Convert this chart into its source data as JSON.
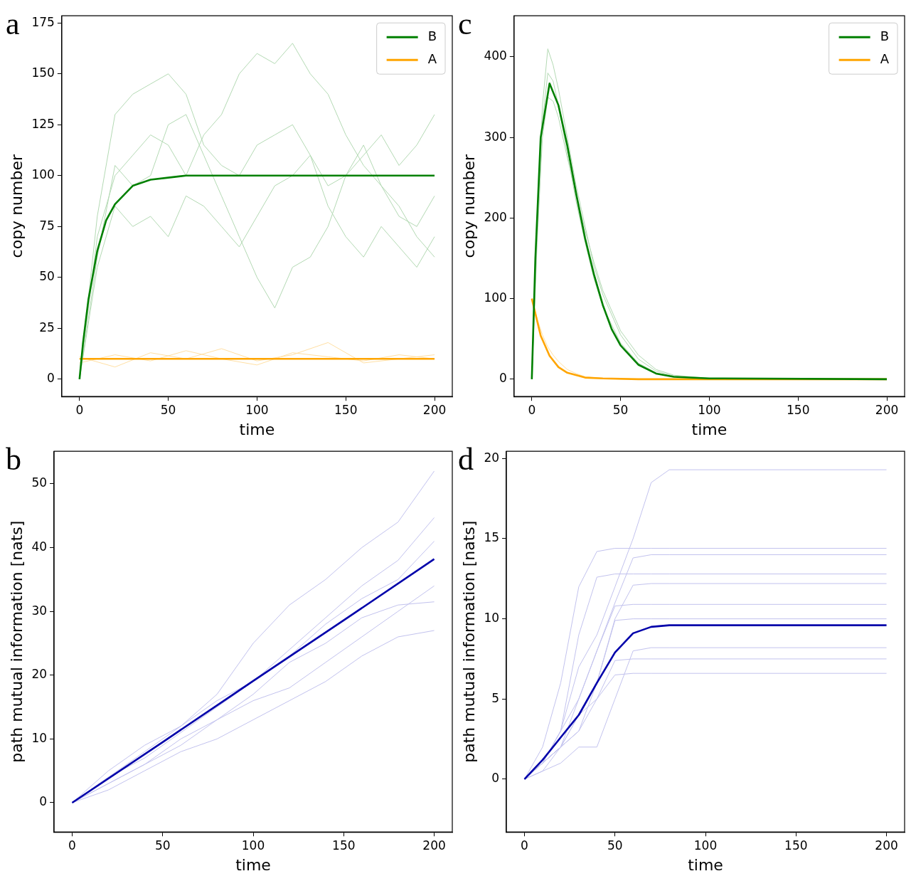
{
  "chart_data": [
    {
      "type": "line",
      "title": "a",
      "xlabel": "time",
      "ylabel": "copy number",
      "xlim": [
        -10,
        210
      ],
      "ylim": [
        -8.5,
        178.5
      ],
      "xticks": [
        0,
        50,
        100,
        150,
        200
      ],
      "yticks": [
        0,
        25,
        50,
        75,
        100,
        125,
        150,
        175
      ],
      "legend": "top right",
      "grid": false,
      "series": [
        {
          "name": "B",
          "color": "#008000",
          "x": [
            0,
            2,
            5,
            10,
            15,
            20,
            30,
            40,
            50,
            60,
            200
          ],
          "values": [
            0,
            18,
            39,
            63,
            78,
            86,
            95,
            98,
            99,
            100,
            100
          ]
        },
        {
          "name": "A",
          "color": "#ffa500",
          "x": [
            0,
            200
          ],
          "values": [
            10,
            10
          ]
        },
        {
          "color": "#b3d9b3",
          "x": [
            0,
            10,
            20,
            30,
            40,
            50,
            60,
            70,
            80,
            90,
            100,
            110,
            120,
            130,
            140,
            150,
            160,
            170,
            180,
            190,
            200
          ],
          "values": [
            0,
            60,
            105,
            95,
            100,
            125,
            130,
            110,
            90,
            70,
            50,
            35,
            55,
            60,
            75,
            100,
            115,
            95,
            80,
            75,
            90
          ]
        },
        {
          "color": "#b3d9b3",
          "x": [
            0,
            10,
            20,
            30,
            40,
            50,
            60,
            70,
            80,
            90,
            100,
            110,
            120,
            130,
            140,
            150,
            160,
            170,
            180,
            190,
            200
          ],
          "values": [
            0,
            70,
            100,
            110,
            120,
            115,
            100,
            120,
            130,
            150,
            160,
            155,
            165,
            150,
            140,
            120,
            105,
            95,
            85,
            70,
            60
          ]
        },
        {
          "color": "#b3d9b3",
          "x": [
            0,
            10,
            20,
            30,
            40,
            50,
            60,
            70,
            80,
            90,
            100,
            110,
            120,
            130,
            140,
            150,
            160,
            170,
            180,
            190,
            200
          ],
          "values": [
            0,
            80,
            130,
            140,
            145,
            150,
            140,
            115,
            105,
            100,
            115,
            120,
            125,
            110,
            95,
            100,
            110,
            120,
            105,
            115,
            130
          ]
        },
        {
          "color": "#b3d9b3",
          "x": [
            0,
            10,
            20,
            30,
            40,
            50,
            60,
            70,
            80,
            90,
            100,
            110,
            120,
            130,
            140,
            150,
            160,
            170,
            180,
            190,
            200
          ],
          "values": [
            0,
            55,
            85,
            75,
            80,
            70,
            90,
            85,
            75,
            65,
            80,
            95,
            100,
            110,
            85,
            70,
            60,
            75,
            65,
            55,
            70
          ]
        },
        {
          "color": "#ffdfa3",
          "x": [
            0,
            20,
            40,
            60,
            80,
            100,
            120,
            140,
            160,
            180,
            200
          ],
          "values": [
            8,
            12,
            9,
            14,
            10,
            7,
            13,
            11,
            9,
            12,
            10
          ]
        },
        {
          "color": "#ffdfa3",
          "x": [
            0,
            20,
            40,
            60,
            80,
            100,
            120,
            140,
            160,
            180,
            200
          ],
          "values": [
            11,
            6,
            13,
            10,
            15,
            9,
            12,
            18,
            8,
            10,
            12
          ]
        }
      ]
    },
    {
      "type": "line",
      "title": "c",
      "xlabel": "time",
      "ylabel": "copy number",
      "xlim": [
        -10,
        210
      ],
      "ylim": [
        -21.5,
        451
      ],
      "xticks": [
        0,
        50,
        100,
        150,
        200
      ],
      "yticks": [
        0,
        100,
        200,
        300,
        400
      ],
      "legend": "top right",
      "grid": false,
      "series": [
        {
          "name": "B",
          "color": "#008000",
          "x": [
            0,
            2,
            5,
            10,
            15,
            20,
            25,
            30,
            35,
            40,
            45,
            50,
            60,
            70,
            80,
            100,
            200
          ],
          "values": [
            0,
            150,
            300,
            367,
            340,
            290,
            230,
            175,
            130,
            92,
            62,
            42,
            18,
            7,
            3,
            1,
            0
          ]
        },
        {
          "name": "A",
          "color": "#ffa500",
          "x": [
            0,
            5,
            10,
            15,
            20,
            30,
            40,
            60,
            200
          ],
          "values": [
            100,
            54,
            29,
            15,
            8,
            2,
            1,
            0,
            0
          ]
        },
        {
          "color": "#b3d9b3",
          "x": [
            0,
            3,
            6,
            9,
            12,
            15,
            20,
            25,
            30,
            35,
            40,
            50,
            60,
            70,
            80,
            100,
            200
          ],
          "values": [
            0,
            200,
            340,
            410,
            390,
            360,
            300,
            240,
            190,
            140,
            105,
            55,
            25,
            10,
            4,
            0,
            0
          ]
        },
        {
          "color": "#b3d9b3",
          "x": [
            0,
            3,
            6,
            9,
            12,
            15,
            20,
            25,
            30,
            35,
            40,
            50,
            60,
            70,
            80,
            100,
            200
          ],
          "values": [
            0,
            180,
            320,
            380,
            370,
            340,
            280,
            220,
            170,
            125,
            90,
            45,
            20,
            8,
            3,
            0,
            0
          ]
        },
        {
          "color": "#b3d9b3",
          "x": [
            0,
            3,
            6,
            9,
            12,
            15,
            20,
            25,
            30,
            35,
            40,
            50,
            60,
            70,
            80,
            100,
            200
          ],
          "values": [
            0,
            170,
            300,
            350,
            345,
            325,
            275,
            230,
            185,
            145,
            110,
            60,
            30,
            12,
            5,
            1,
            0
          ]
        },
        {
          "color": "#ffdfa3",
          "x": [
            0,
            3,
            6,
            9,
            12,
            15,
            20,
            25,
            30,
            35,
            40,
            50,
            60,
            200
          ],
          "values": [
            100,
            75,
            55,
            40,
            30,
            22,
            12,
            7,
            3,
            2,
            1,
            0,
            0,
            0
          ]
        }
      ]
    },
    {
      "type": "line",
      "title": "b",
      "xlabel": "time",
      "ylabel": "path mutual information [nats]",
      "xlim": [
        -10,
        210
      ],
      "ylim": [
        -4.6,
        55.1
      ],
      "xticks": [
        0,
        50,
        100,
        150,
        200
      ],
      "yticks": [
        0,
        10,
        20,
        30,
        40,
        50
      ],
      "grid": false,
      "series": [
        {
          "color": "#0000aa",
          "x": [
            0,
            50,
            100,
            150,
            200
          ],
          "values": [
            0,
            9.5,
            19.1,
            28.6,
            38.2
          ]
        },
        {
          "color": "#c2c2ee",
          "x": [
            0,
            20,
            40,
            60,
            80,
            100,
            120,
            140,
            160,
            180,
            200
          ],
          "values": [
            0,
            5,
            9,
            12,
            17,
            25,
            31,
            35,
            40,
            44,
            52
          ]
        },
        {
          "color": "#c2c2ee",
          "x": [
            0,
            20,
            40,
            60,
            80,
            100,
            120,
            140,
            160,
            180,
            200
          ],
          "values": [
            0,
            3,
            6,
            10,
            13,
            17,
            22,
            25,
            29,
            31,
            31.5
          ]
        },
        {
          "color": "#c2c2ee",
          "x": [
            0,
            20,
            40,
            60,
            80,
            100,
            120,
            140,
            160,
            180,
            200
          ],
          "values": [
            0,
            4,
            8,
            12,
            16,
            19,
            24,
            29,
            34,
            38,
            44.7
          ]
        },
        {
          "color": "#c2c2ee",
          "x": [
            0,
            20,
            40,
            60,
            80,
            100,
            120,
            140,
            160,
            180,
            200
          ],
          "values": [
            0,
            2,
            5,
            8,
            10,
            13,
            16,
            19,
            23,
            26,
            27
          ]
        },
        {
          "color": "#c2c2ee",
          "x": [
            0,
            20,
            40,
            60,
            80,
            100,
            120,
            140,
            160,
            180,
            200
          ],
          "values": [
            0,
            4,
            7,
            11,
            15,
            19,
            23,
            28,
            32,
            35,
            41
          ]
        },
        {
          "color": "#c2c2ee",
          "x": [
            0,
            20,
            40,
            60,
            80,
            100,
            120,
            140,
            160,
            180,
            200
          ],
          "values": [
            0,
            3,
            6,
            9,
            13,
            16,
            18,
            22,
            26,
            30,
            34
          ]
        }
      ]
    },
    {
      "type": "line",
      "title": "d",
      "xlabel": "time",
      "ylabel": "path mutual information [nats]",
      "xlim": [
        -10,
        210
      ],
      "ylim": [
        -3.3,
        20.45
      ],
      "xticks": [
        0,
        50,
        100,
        150,
        200
      ],
      "yticks": [
        0,
        5,
        10,
        15,
        20
      ],
      "grid": false,
      "series": [
        {
          "color": "#0000aa",
          "x": [
            0,
            10,
            20,
            30,
            40,
            50,
            60,
            70,
            80,
            100,
            200
          ],
          "values": [
            0,
            1.2,
            2.6,
            4.0,
            6.0,
            7.9,
            9.1,
            9.5,
            9.6,
            9.6,
            9.6
          ]
        },
        {
          "color": "#c2c2ee",
          "x": [
            0,
            10,
            20,
            30,
            40,
            50,
            60,
            70,
            80,
            200
          ],
          "values": [
            0,
            1,
            3,
            7,
            9,
            12,
            15,
            18.5,
            19.3,
            19.3
          ]
        },
        {
          "color": "#c2c2ee",
          "x": [
            0,
            10,
            20,
            30,
            40,
            50,
            60,
            70,
            80,
            200
          ],
          "values": [
            0,
            2,
            6,
            12,
            14.2,
            14.4,
            14.4,
            14.4,
            14.4,
            14.4
          ]
        },
        {
          "color": "#c2c2ee",
          "x": [
            0,
            10,
            20,
            30,
            40,
            50,
            60,
            70,
            80,
            200
          ],
          "values": [
            0,
            1,
            2,
            5,
            8,
            11,
            13.8,
            14,
            14,
            14
          ]
        },
        {
          "color": "#c2c2ee",
          "x": [
            0,
            10,
            20,
            30,
            40,
            50,
            60,
            70,
            80,
            200
          ],
          "values": [
            0,
            1,
            3,
            9,
            12.6,
            12.8,
            12.8,
            12.8,
            12.8,
            12.8
          ]
        },
        {
          "color": "#c2c2ee",
          "x": [
            0,
            10,
            20,
            30,
            40,
            50,
            60,
            70,
            80,
            200
          ],
          "values": [
            0,
            1,
            2,
            4,
            6,
            10,
            12.1,
            12.2,
            12.2,
            12.2
          ]
        },
        {
          "color": "#c2c2ee",
          "x": [
            0,
            10,
            20,
            30,
            40,
            50,
            60,
            70,
            80,
            200
          ],
          "values": [
            0,
            1,
            3,
            5,
            8,
            10.8,
            10.9,
            10.9,
            10.9,
            10.9
          ]
        },
        {
          "color": "#c2c2ee",
          "x": [
            0,
            10,
            20,
            30,
            40,
            50,
            60,
            70,
            80,
            200
          ],
          "values": [
            0,
            0.5,
            2,
            3,
            6,
            9.9,
            10,
            10,
            10,
            10
          ]
        },
        {
          "color": "#c2c2ee",
          "x": [
            0,
            10,
            20,
            30,
            40,
            50,
            60,
            70,
            80,
            200
          ],
          "values": [
            0,
            0.5,
            1,
            2,
            2,
            5,
            8,
            8.2,
            8.2,
            8.2
          ]
        },
        {
          "color": "#c2c2ee",
          "x": [
            0,
            10,
            20,
            30,
            40,
            50,
            60,
            70,
            80,
            200
          ],
          "values": [
            0,
            1,
            2,
            4,
            5,
            7.4,
            7.5,
            7.5,
            7.5,
            7.5
          ]
        },
        {
          "color": "#c2c2ee",
          "x": [
            0,
            10,
            20,
            30,
            40,
            50,
            60,
            70,
            80,
            200
          ],
          "values": [
            0,
            1,
            2,
            3,
            5,
            6.5,
            6.6,
            6.6,
            6.6,
            6.6
          ]
        }
      ]
    }
  ]
}
